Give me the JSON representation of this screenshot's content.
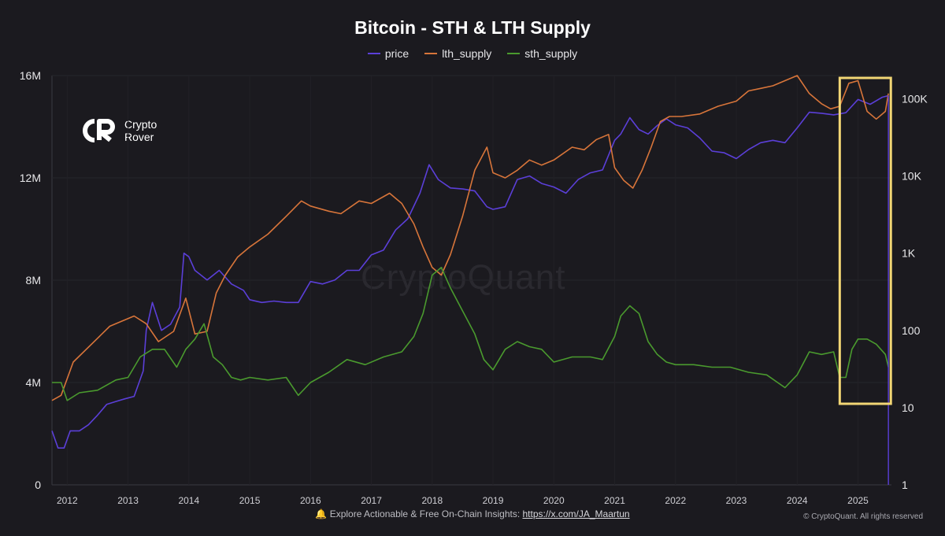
{
  "chart_data": {
    "type": "line",
    "title": "Bitcoin - STH & LTH Supply",
    "xlabel": "",
    "ylabel": "",
    "x_ticks": [
      "2012",
      "2013",
      "2014",
      "2015",
      "2016",
      "2017",
      "2018",
      "2019",
      "2020",
      "2021",
      "2022",
      "2023",
      "2024",
      "2025"
    ],
    "x_range": [
      2011.75,
      2025.55
    ],
    "y_left": {
      "ticks": [
        "0",
        "4M",
        "8M",
        "12M",
        "16M"
      ],
      "range": [
        0,
        16000000
      ]
    },
    "y_right": {
      "scale": "log",
      "ticks": [
        "1",
        "10",
        "100",
        "1K",
        "10K",
        "100K"
      ],
      "range": [
        1,
        200000
      ]
    },
    "grid": true,
    "legend_position": "top-center",
    "series": [
      {
        "name": "price",
        "color": "#5b3fd8",
        "axis": "right",
        "x": [
          2011.75,
          2011.85,
          2011.95,
          2012.05,
          2012.2,
          2012.35,
          2012.5,
          2012.65,
          2012.8,
          2012.95,
          2013.1,
          2013.25,
          2013.3,
          2013.4,
          2013.55,
          2013.7,
          2013.85,
          2013.92,
          2014.0,
          2014.1,
          2014.3,
          2014.5,
          2014.7,
          2014.9,
          2015.0,
          2015.2,
          2015.4,
          2015.6,
          2015.8,
          2016.0,
          2016.2,
          2016.4,
          2016.6,
          2016.8,
          2017.0,
          2017.2,
          2017.4,
          2017.6,
          2017.8,
          2017.95,
          2018.1,
          2018.3,
          2018.5,
          2018.7,
          2018.9,
          2019.0,
          2019.2,
          2019.4,
          2019.6,
          2019.8,
          2020.0,
          2020.2,
          2020.4,
          2020.6,
          2020.8,
          2021.0,
          2021.1,
          2021.25,
          2021.4,
          2021.55,
          2021.7,
          2021.85,
          2022.0,
          2022.2,
          2022.4,
          2022.6,
          2022.8,
          2023.0,
          2023.2,
          2023.4,
          2023.6,
          2023.8,
          2024.0,
          2024.2,
          2024.4,
          2024.6,
          2024.8,
          2025.0,
          2025.2,
          2025.4,
          2025.5
        ],
        "values": [
          5,
          3,
          3,
          5,
          5,
          6,
          8,
          11,
          12,
          13,
          14,
          30,
          100,
          230,
          100,
          120,
          200,
          1000,
          900,
          600,
          450,
          600,
          400,
          330,
          250,
          230,
          240,
          230,
          230,
          430,
          400,
          450,
          600,
          600,
          950,
          1100,
          2000,
          2800,
          6000,
          14000,
          9000,
          7000,
          6800,
          6400,
          4000,
          3700,
          4000,
          9000,
          10000,
          8000,
          7200,
          6000,
          9000,
          11000,
          12000,
          29000,
          35000,
          57000,
          40000,
          35000,
          45000,
          55000,
          46000,
          42000,
          31000,
          21000,
          20000,
          16800,
          22000,
          27000,
          29000,
          27000,
          42000,
          67000,
          65000,
          62000,
          66000,
          98000,
          85000,
          105000,
          110000
        ]
      },
      {
        "name": "lth_supply",
        "color": "#d8753a",
        "axis": "left",
        "x": [
          2011.75,
          2011.9,
          2012.1,
          2012.4,
          2012.7,
          2012.9,
          2013.1,
          2013.3,
          2013.5,
          2013.75,
          2013.95,
          2014.1,
          2014.3,
          2014.45,
          2014.6,
          2014.8,
          2015.0,
          2015.3,
          2015.6,
          2015.85,
          2016.0,
          2016.3,
          2016.5,
          2016.8,
          2017.0,
          2017.3,
          2017.5,
          2017.7,
          2017.85,
          2018.0,
          2018.15,
          2018.3,
          2018.5,
          2018.7,
          2018.9,
          2019.0,
          2019.2,
          2019.4,
          2019.6,
          2019.8,
          2020.0,
          2020.3,
          2020.5,
          2020.7,
          2020.9,
          2021.0,
          2021.15,
          2021.3,
          2021.45,
          2021.6,
          2021.75,
          2021.9,
          2022.1,
          2022.4,
          2022.7,
          2023.0,
          2023.2,
          2023.4,
          2023.6,
          2023.8,
          2024.0,
          2024.2,
          2024.4,
          2024.55,
          2024.7,
          2024.85,
          2025.0,
          2025.15,
          2025.3,
          2025.45,
          2025.5
        ],
        "values": [
          3300000,
          3500000,
          4800000,
          5500000,
          6200000,
          6400000,
          6600000,
          6300000,
          5600000,
          6000000,
          7300000,
          5900000,
          6000000,
          7500000,
          8200000,
          8900000,
          9300000,
          9800000,
          10500000,
          11100000,
          10900000,
          10700000,
          10600000,
          11100000,
          11000000,
          11400000,
          11000000,
          10200000,
          9300000,
          8500000,
          8200000,
          9000000,
          10500000,
          12300000,
          13200000,
          12200000,
          12000000,
          12300000,
          12700000,
          12500000,
          12700000,
          13200000,
          13100000,
          13500000,
          13700000,
          12400000,
          11900000,
          11600000,
          12300000,
          13200000,
          14200000,
          14400000,
          14400000,
          14500000,
          14800000,
          15000000,
          15400000,
          15500000,
          15600000,
          15800000,
          16000000,
          15300000,
          14900000,
          14700000,
          14800000,
          15700000,
          15800000,
          14600000,
          14300000,
          14600000,
          15300000
        ]
      },
      {
        "name": "sth_supply",
        "color": "#4a9a2e",
        "axis": "left",
        "x": [
          2011.75,
          2011.9,
          2012.0,
          2012.2,
          2012.5,
          2012.8,
          2013.0,
          2013.2,
          2013.4,
          2013.6,
          2013.8,
          2013.95,
          2014.1,
          2014.25,
          2014.4,
          2014.55,
          2014.7,
          2014.85,
          2015.0,
          2015.3,
          2015.6,
          2015.8,
          2016.0,
          2016.3,
          2016.6,
          2016.9,
          2017.2,
          2017.5,
          2017.7,
          2017.85,
          2018.0,
          2018.15,
          2018.3,
          2018.5,
          2018.7,
          2018.85,
          2019.0,
          2019.2,
          2019.4,
          2019.6,
          2019.8,
          2020.0,
          2020.3,
          2020.6,
          2020.8,
          2021.0,
          2021.1,
          2021.25,
          2021.4,
          2021.55,
          2021.7,
          2021.85,
          2022.0,
          2022.3,
          2022.6,
          2022.9,
          2023.2,
          2023.5,
          2023.8,
          2024.0,
          2024.2,
          2024.4,
          2024.6,
          2024.7,
          2024.8,
          2024.9,
          2025.0,
          2025.15,
          2025.3,
          2025.45,
          2025.5
        ],
        "values": [
          4000000,
          4000000,
          3300000,
          3600000,
          3700000,
          4100000,
          4200000,
          5000000,
          5300000,
          5300000,
          4600000,
          5300000,
          5700000,
          6300000,
          5000000,
          4700000,
          4200000,
          4100000,
          4200000,
          4100000,
          4200000,
          3500000,
          4000000,
          4400000,
          4900000,
          4700000,
          5000000,
          5200000,
          5800000,
          6700000,
          8200000,
          8500000,
          7700000,
          6800000,
          5900000,
          4900000,
          4500000,
          5300000,
          5600000,
          5400000,
          5300000,
          4800000,
          5000000,
          5000000,
          4900000,
          5800000,
          6600000,
          7000000,
          6700000,
          5600000,
          5100000,
          4800000,
          4700000,
          4700000,
          4600000,
          4600000,
          4400000,
          4300000,
          3800000,
          4300000,
          5200000,
          5100000,
          5200000,
          4200000,
          4200000,
          5300000,
          5700000,
          5700000,
          5500000,
          5100000,
          4600000
        ]
      }
    ],
    "annotation": "highlight box around 2024.7–2025.5"
  },
  "brand": {
    "line1": "Crypto",
    "line2": "Rover"
  },
  "watermark": "CryptoQuant",
  "footer": {
    "prefix": "🔔 Explore Actionable & Free On-Chain Insights: ",
    "link": "https://x.com/JA_Maartun"
  },
  "copyright": "© CryptoQuant. All rights reserved",
  "colors": {
    "background": "#1b1a1f",
    "grid": "#2b2a30",
    "highlight": "#f2d675"
  }
}
